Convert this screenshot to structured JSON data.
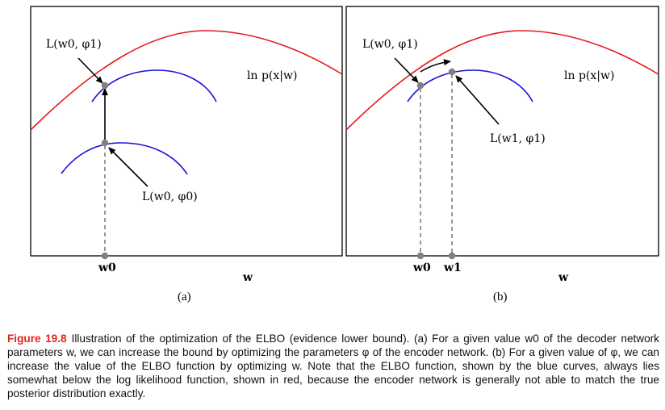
{
  "panels": [
    {
      "label": "(a)",
      "axis_label": "w",
      "curve_label": "ln p(x|w)",
      "ticks": [
        "w0"
      ],
      "annotations": [
        "L(w0, φ1)",
        "L(w0, φ0)"
      ]
    },
    {
      "label": "(b)",
      "axis_label": "w",
      "curve_label": "ln p(x|w)",
      "ticks": [
        "w0",
        "w1"
      ],
      "annotations": [
        "L(w0, φ1)",
        "L(w1, φ1)"
      ]
    }
  ],
  "colors": {
    "log_likelihood": "#e8191a",
    "elbo": "#1a12d6",
    "point": "#808080",
    "caption_label": "#e2231a"
  },
  "caption": {
    "label": "Figure 19.8",
    "text": "Illustration of the optimization of the ELBO (evidence lower bound). (a) For a given value w0 of the decoder network parameters w, we can increase the bound by optimizing the parameters φ of the encoder network. (b) For a given value of φ, we can increase the value of the ELBO function by optimizing w. Note that the ELBO function, shown by the blue curves, always lies somewhat below the log likelihood function, shown in red, because the encoder network is generally not able to match the true posterior distribution exactly."
  }
}
